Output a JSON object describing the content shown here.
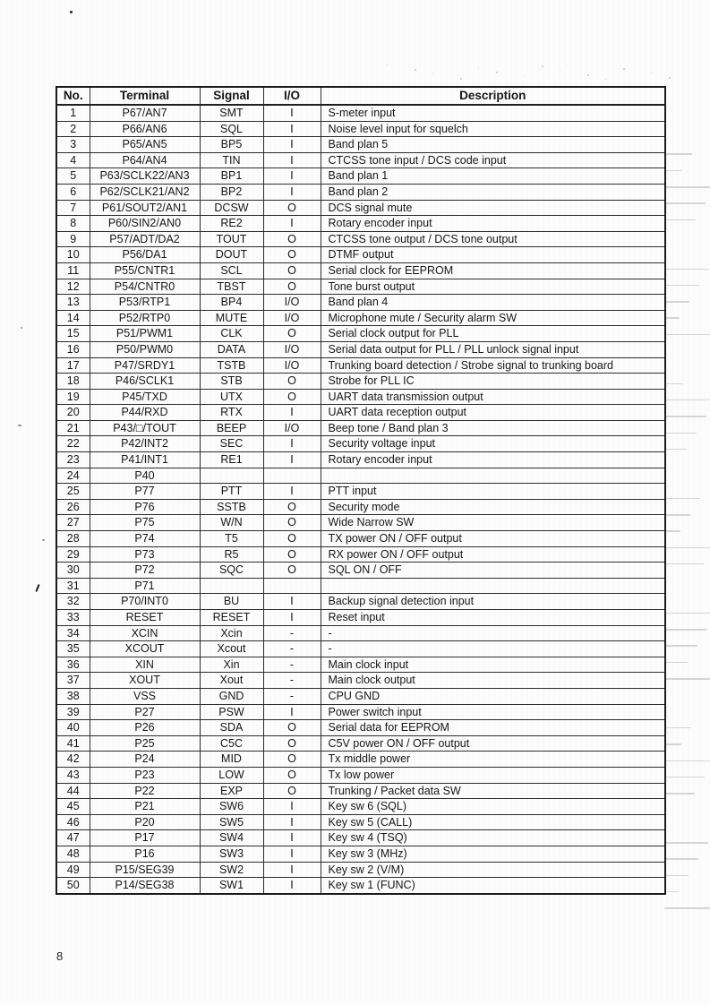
{
  "page": {
    "number": "8"
  },
  "colors": {
    "ink": "#161616",
    "table_border": "#1b1b1b",
    "scan_streak": "#b5b5b5"
  },
  "table": {
    "headers": [
      "No.",
      "Terminal",
      "Signal",
      "I/O",
      "Description"
    ],
    "rows": [
      [
        "1",
        "P67/AN7",
        "SMT",
        "I",
        "S-meter input"
      ],
      [
        "2",
        "P66/AN6",
        "SQL",
        "I",
        "Noise level input for squelch"
      ],
      [
        "3",
        "P65/AN5",
        "BP5",
        "I",
        "Band plan 5"
      ],
      [
        "4",
        "P64/AN4",
        "TIN",
        "I",
        "CTCSS tone input / DCS code input"
      ],
      [
        "5",
        "P63/SCLK22/AN3",
        "BP1",
        "I",
        "Band plan 1"
      ],
      [
        "6",
        "P62/SCLK21/AN2",
        "BP2",
        "I",
        "Band plan 2"
      ],
      [
        "7",
        "P61/SOUT2/AN1",
        "DCSW",
        "O",
        "DCS signal mute"
      ],
      [
        "8",
        "P60/SIN2/AN0",
        "RE2",
        "I",
        "Rotary encoder input"
      ],
      [
        "9",
        "P57/ADT/DA2",
        "TOUT",
        "O",
        "CTCSS tone output / DCS tone output"
      ],
      [
        "10",
        "P56/DA1",
        "DOUT",
        "O",
        "DTMF output"
      ],
      [
        "11",
        "P55/CNTR1",
        "SCL",
        "O",
        "Serial clock for EEPROM"
      ],
      [
        "12",
        "P54/CNTR0",
        "TBST",
        "O",
        "Tone burst output"
      ],
      [
        "13",
        "P53/RTP1",
        "BP4",
        "I/O",
        "Band plan 4"
      ],
      [
        "14",
        "P52/RTP0",
        "MUTE",
        "I/O",
        "Microphone mute / Security alarm SW"
      ],
      [
        "15",
        "P51/PWM1",
        "CLK",
        "O",
        "Serial clock output for PLL"
      ],
      [
        "16",
        "P50/PWM0",
        "DATA",
        "I/O",
        "Serial data output for PLL / PLL unlock signal input"
      ],
      [
        "17",
        "P47/SRDY1",
        "TSTB",
        "I/O",
        "Trunking board detection / Strobe signal to trunking board"
      ],
      [
        "18",
        "P46/SCLK1",
        "STB",
        "O",
        "Strobe for PLL IC"
      ],
      [
        "19",
        "P45/TXD",
        "UTX",
        "O",
        "UART data transmission output"
      ],
      [
        "20",
        "P44/RXD",
        "RTX",
        "I",
        "UART data reception output"
      ],
      [
        "21",
        "P43/□/TOUT",
        "BEEP",
        "I/O",
        "Beep tone / Band plan 3"
      ],
      [
        "22",
        "P42/INT2",
        "SEC",
        "I",
        "Security voltage input"
      ],
      [
        "23",
        "P41/INT1",
        "RE1",
        "I",
        "Rotary encoder input"
      ],
      [
        "24",
        "P40",
        "",
        "",
        ""
      ],
      [
        "25",
        "P77",
        "PTT",
        "I",
        "PTT input"
      ],
      [
        "26",
        "P76",
        "SSTB",
        "O",
        "Security mode"
      ],
      [
        "27",
        "P75",
        "W/N",
        "O",
        "Wide Narrow SW"
      ],
      [
        "28",
        "P74",
        "T5",
        "O",
        "TX power ON / OFF output"
      ],
      [
        "29",
        "P73",
        "R5",
        "O",
        "RX power ON / OFF output"
      ],
      [
        "30",
        "P72",
        "SQC",
        "O",
        "SQL ON / OFF"
      ],
      [
        "31",
        "P71",
        "",
        "",
        ""
      ],
      [
        "32",
        "P70/INT0",
        "BU",
        "I",
        "Backup signal detection input"
      ],
      [
        "33",
        "RESET",
        "RESET",
        "I",
        "Reset input"
      ],
      [
        "34",
        "XCIN",
        "Xcin",
        "-",
        "-"
      ],
      [
        "35",
        "XCOUT",
        "Xcout",
        "-",
        "-"
      ],
      [
        "36",
        "XIN",
        "Xin",
        "-",
        "Main clock input"
      ],
      [
        "37",
        "XOUT",
        "Xout",
        "-",
        "Main clock output"
      ],
      [
        "38",
        "VSS",
        "GND",
        "-",
        "CPU GND"
      ],
      [
        "39",
        "P27",
        "PSW",
        "I",
        "Power switch input"
      ],
      [
        "40",
        "P26",
        "SDA",
        "O",
        "Serial data for EEPROM"
      ],
      [
        "41",
        "P25",
        "C5C",
        "O",
        "C5V power ON / OFF output"
      ],
      [
        "42",
        "P24",
        "MID",
        "O",
        "Tx middle power"
      ],
      [
        "43",
        "P23",
        "LOW",
        "O",
        "Tx low power"
      ],
      [
        "44",
        "P22",
        "EXP",
        "O",
        "Trunking / Packet data SW"
      ],
      [
        "45",
        "P21",
        "SW6",
        "I",
        "Key sw 6 (SQL)"
      ],
      [
        "46",
        "P20",
        "SW5",
        "I",
        "Key sw 5 (CALL)"
      ],
      [
        "47",
        "P17",
        "SW4",
        "I",
        "Key sw 4 (TSQ)"
      ],
      [
        "48",
        "P16",
        "SW3",
        "I",
        "Key sw 3 (MHz)"
      ],
      [
        "49",
        "P15/SEG39",
        "SW2",
        "I",
        "Key sw 2 (V/M)"
      ],
      [
        "50",
        "P14/SEG38",
        "SW1",
        "I",
        "Key sw 1 (FUNC)"
      ]
    ]
  }
}
